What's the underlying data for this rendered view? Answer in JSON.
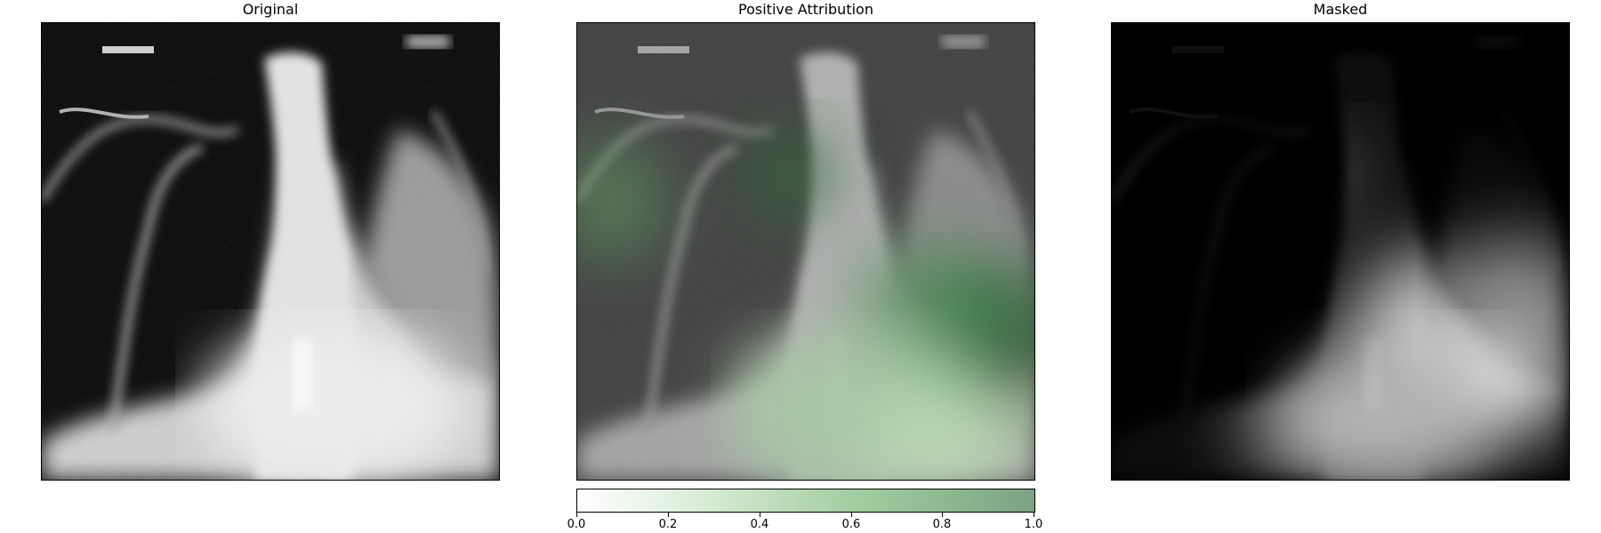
{
  "panels": [
    {
      "title": "Original"
    },
    {
      "title": "Positive Attribution"
    },
    {
      "title": "Masked"
    }
  ],
  "colorbar": {
    "ticks": [
      "0.0",
      "0.2",
      "0.4",
      "0.6",
      "0.8",
      "1.0"
    ],
    "colors": [
      "#ffffff",
      "#e3f2e1",
      "#c4e1c0",
      "#a3cea1",
      "#8cbb8f",
      "#7ca283"
    ]
  }
}
